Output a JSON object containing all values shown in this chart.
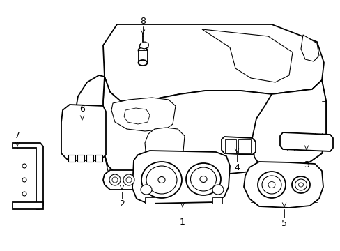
{
  "figsize": [
    4.89,
    3.6
  ],
  "dpi": 100,
  "background_color": "#ffffff",
  "line_color": "#000000",
  "lw_main": 1.3,
  "lw_detail": 0.8,
  "lw_fine": 0.6
}
